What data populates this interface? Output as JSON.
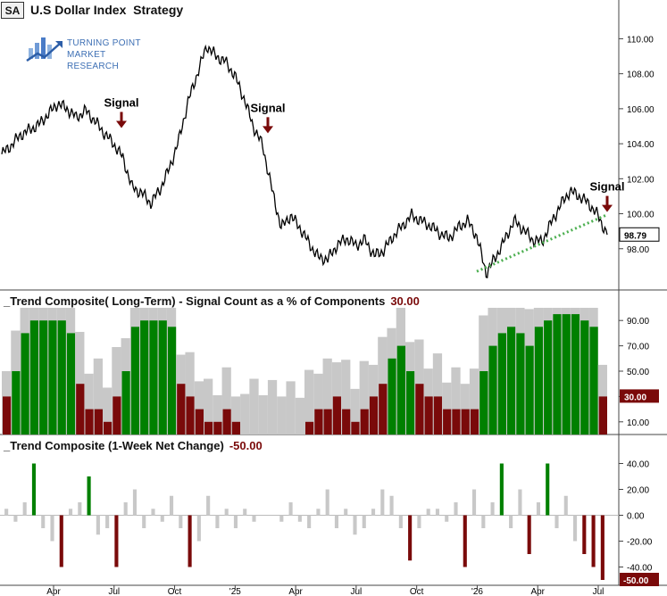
{
  "header": {
    "badge": "SA",
    "title": "U.S Dollar Index  Strategy"
  },
  "logo": {
    "line1": "TURNING POINT",
    "line2": "MARKET RESEARCH"
  },
  "colors": {
    "line": "#000000",
    "green": "#008000",
    "red": "#7a0a0a",
    "gray": "#c8c8c8",
    "trendline": "#4caf50"
  },
  "chart_data": [
    {
      "type": "line",
      "x_tick_labels": [
        "Apr",
        "Jul",
        "Oct",
        "'25",
        "Apr",
        "Jul",
        "Oct",
        "'26",
        "Apr",
        "Jul"
      ],
      "y_ticks": [
        "110.00",
        "108.00",
        "106.00",
        "104.00",
        "102.00",
        "100.00",
        "98.00"
      ],
      "ylim": [
        96,
        111.5
      ],
      "last_value": "98.79",
      "annotations": [
        {
          "text": "Signal",
          "y": 104.9
        },
        {
          "text": "Signal",
          "y": 104.6
        },
        {
          "text": "Signal",
          "y": 100.1
        }
      ],
      "series": [
        {
          "values": [
            103.4,
            103.9,
            104.5,
            104.8,
            105.1,
            105.7,
            106.3,
            106.0,
            105.5,
            105.9,
            105.3,
            104.6,
            104.0,
            103.2,
            101.5,
            101.2,
            100.6,
            101.4,
            102.6,
            104.2,
            106.4,
            108.0,
            109.6,
            109.0,
            108.7,
            107.9,
            106.6,
            105.0,
            103.9,
            101.4,
            99.2,
            99.9,
            99.2,
            98.3,
            97.5,
            97.4,
            98.2,
            98.6,
            98.2,
            98.5,
            97.6,
            97.9,
            98.7,
            99.3,
            99.9,
            99.6,
            99.3,
            98.9,
            98.6,
            99.2,
            99.6,
            98.7,
            96.6,
            97.5,
            98.5,
            99.6,
            99.1,
            98.5,
            98.4,
            99.5,
            100.5,
            101.3,
            101.0,
            100.6,
            99.9,
            98.8
          ]
        }
      ]
    },
    {
      "type": "bar",
      "title": "_Trend Composite( Long-Term) - Signal Count as a % of Components",
      "last_value": "30.00",
      "y_ticks": [
        "90.00",
        "70.00",
        "50.00",
        "30.00",
        "10.00"
      ],
      "ylim": [
        0,
        100
      ],
      "bars": [
        [
          30,
          "r"
        ],
        [
          50,
          "g"
        ],
        [
          80,
          "g"
        ],
        [
          90,
          "g"
        ],
        [
          90,
          "g"
        ],
        [
          90,
          "g"
        ],
        [
          90,
          "g"
        ],
        [
          80,
          "g"
        ],
        [
          40,
          "r"
        ],
        [
          20,
          "r"
        ],
        [
          20,
          "r"
        ],
        [
          10,
          "r"
        ],
        [
          30,
          "r"
        ],
        [
          50,
          "g"
        ],
        [
          85,
          "g"
        ],
        [
          90,
          "g"
        ],
        [
          90,
          "g"
        ],
        [
          90,
          "g"
        ],
        [
          85,
          "g"
        ],
        [
          40,
          "r"
        ],
        [
          30,
          "r"
        ],
        [
          20,
          "r"
        ],
        [
          10,
          "r"
        ],
        [
          10,
          "r"
        ],
        [
          20,
          "r"
        ],
        [
          10,
          "r"
        ],
        [
          0,
          "r"
        ],
        [
          0,
          "r"
        ],
        [
          0,
          "r"
        ],
        [
          0,
          "r"
        ],
        [
          0,
          "r"
        ],
        [
          0,
          "r"
        ],
        [
          0,
          "r"
        ],
        [
          10,
          "r"
        ],
        [
          20,
          "r"
        ],
        [
          20,
          "r"
        ],
        [
          30,
          "r"
        ],
        [
          20,
          "r"
        ],
        [
          10,
          "r"
        ],
        [
          20,
          "r"
        ],
        [
          30,
          "r"
        ],
        [
          40,
          "r"
        ],
        [
          60,
          "g"
        ],
        [
          70,
          "g"
        ],
        [
          50,
          "g"
        ],
        [
          40,
          "r"
        ],
        [
          30,
          "r"
        ],
        [
          30,
          "r"
        ],
        [
          20,
          "r"
        ],
        [
          20,
          "r"
        ],
        [
          20,
          "r"
        ],
        [
          20,
          "r"
        ],
        [
          50,
          "g"
        ],
        [
          70,
          "g"
        ],
        [
          80,
          "g"
        ],
        [
          85,
          "g"
        ],
        [
          80,
          "g"
        ],
        [
          70,
          "g"
        ],
        [
          85,
          "g"
        ],
        [
          90,
          "g"
        ],
        [
          95,
          "g"
        ],
        [
          95,
          "g"
        ],
        [
          95,
          "g"
        ],
        [
          90,
          "g"
        ],
        [
          85,
          "g"
        ],
        [
          30,
          "r"
        ]
      ]
    },
    {
      "type": "bar",
      "title": "_Trend Composite (1-Week Net Change)",
      "last_value": "-50.00",
      "y_ticks": [
        "40.00",
        "20.00",
        "0.00",
        "-20.00",
        "-40.00"
      ],
      "ylim": [
        -50,
        50
      ],
      "bars": [
        5,
        -5,
        10,
        40,
        -10,
        -20,
        -40,
        5,
        10,
        30,
        -15,
        -10,
        -40,
        10,
        20,
        -10,
        5,
        -5,
        15,
        -10,
        -40,
        -20,
        15,
        -10,
        5,
        -10,
        5,
        -5,
        0,
        0,
        -5,
        10,
        -5,
        -10,
        5,
        20,
        -10,
        5,
        -15,
        -10,
        5,
        20,
        15,
        -10,
        -35,
        -10,
        5,
        5,
        -5,
        10,
        -40,
        20,
        -10,
        10,
        40,
        -10,
        20,
        -30,
        10,
        40,
        -10,
        15,
        -20,
        -30,
        -40,
        -50
      ]
    }
  ]
}
